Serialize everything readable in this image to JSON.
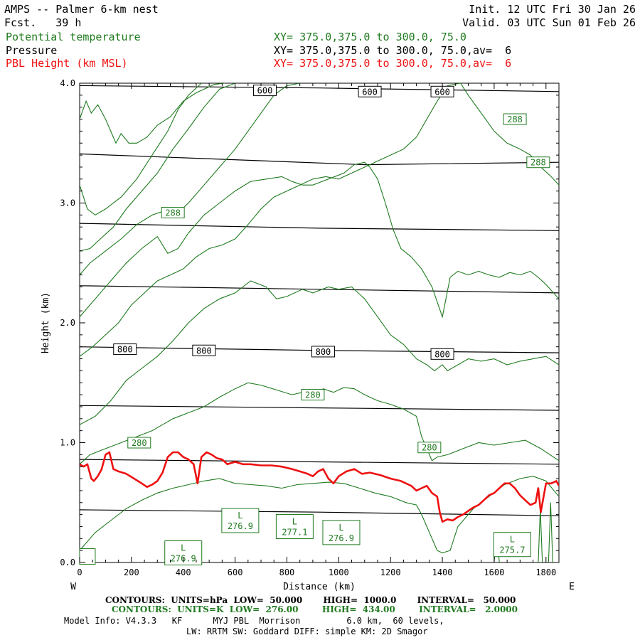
{
  "header": {
    "title": "AMPS -- Palmer 6-km nest",
    "fcst": "Fcst.   39 h",
    "init": "Init. 12 UTC Fri 30 Jan 26",
    "valid": "Valid. 03 UTC Sun 01 Feb 26",
    "rows": [
      {
        "name": "Potential temperature",
        "xy": "XY= 375.0,375.0 to 300.0, 75.0",
        "color": "#1f7a1f"
      },
      {
        "name": "Pressure",
        "xy": "XY= 375.0,375.0 to 300.0, 75.0,av=  6",
        "color": "#000000"
      },
      {
        "name": "PBL Height (km MSL)",
        "xy": "XY= 375.0,375.0 to 300.0, 75.0,av=  6",
        "color": "#ee1111"
      }
    ]
  },
  "footer": {
    "line1": "CONTOURS:  UNITS=hPa  LOW=  50.000       HIGH=  1000.0       INTERVAL=   50.000",
    "line2": "CONTOURS:  UNITS=K  LOW=  276.00        HIGH=  434.00        INTERVAL=   2.0000",
    "line3": "Model Info: V4.3.3   KF      MYJ PBL  Morrison         6.0 km,  60 levels,",
    "line4": "LW: RRTM SW: Goddard DIFF: simple KM: 2D Smagor"
  },
  "colors": {
    "theta": "#1f7a1f",
    "pressure": "#000000",
    "pbl": "#ee1111"
  },
  "chart_data": {
    "type": "line",
    "title": "AMPS -- Palmer 6-km nest cross section",
    "xlabel": "Distance (km)",
    "ylabel": "Height (km)",
    "xlim": [
      0,
      1850
    ],
    "ylim": [
      0,
      4.0
    ],
    "xticks": [
      "0",
      "200",
      "400",
      "600",
      "800",
      "1000",
      "1200",
      "1400",
      "1600",
      "1800"
    ],
    "yticks": [
      "0.0",
      "1.0",
      "2.0",
      "3.0",
      "4.0"
    ],
    "x_end_labels": {
      "left": "W",
      "right": "E"
    },
    "pressure_contours": [
      {
        "x": [
          0,
          925,
          1850
        ],
        "y": [
          3.98,
          3.96,
          3.93
        ]
      },
      {
        "x": [
          0,
          1100,
          1850
        ],
        "y": [
          3.41,
          3.32,
          3.34
        ]
      },
      {
        "x": [
          0,
          925,
          1850
        ],
        "y": [
          2.83,
          2.79,
          2.77
        ]
      },
      {
        "x": [
          0,
          925,
          1850
        ],
        "y": [
          2.31,
          2.28,
          2.25
        ]
      },
      {
        "x": [
          0,
          925,
          1850
        ],
        "y": [
          1.8,
          1.77,
          1.75
        ]
      },
      {
        "x": [
          0,
          925,
          1850
        ],
        "y": [
          1.31,
          1.29,
          1.27
        ]
      },
      {
        "x": [
          0,
          925,
          1850
        ],
        "y": [
          0.86,
          0.84,
          0.82
        ]
      },
      {
        "x": [
          0,
          925,
          1850
        ],
        "y": [
          0.44,
          0.42,
          0.39
        ]
      }
    ],
    "pressure_labels": [
      {
        "text": "600",
        "x": 715,
        "y": 3.94
      },
      {
        "text": "600",
        "x": 1120,
        "y": 3.93
      },
      {
        "text": "600",
        "x": 1400,
        "y": 3.93
      },
      {
        "text": "800",
        "x": 175,
        "y": 1.78
      },
      {
        "text": "800",
        "x": 480,
        "y": 1.77
      },
      {
        "text": "800",
        "x": 940,
        "y": 1.76
      },
      {
        "text": "800",
        "x": 1400,
        "y": 1.74
      }
    ],
    "theta_contours": [
      {
        "x": [
          0,
          25,
          45,
          70,
          100,
          120,
          140,
          160,
          190,
          220,
          260,
          300,
          350,
          400,
          450,
          520,
          560
        ],
        "y": [
          3.7,
          3.85,
          3.75,
          3.82,
          3.7,
          3.6,
          3.5,
          3.58,
          3.5,
          3.5,
          3.55,
          3.65,
          3.72,
          3.85,
          3.92,
          3.99,
          4.0
        ]
      },
      {
        "x": [
          0,
          30,
          60,
          100,
          160,
          220,
          280,
          340,
          380,
          420,
          470
        ],
        "y": [
          3.15,
          2.95,
          2.9,
          2.95,
          3.05,
          3.2,
          3.4,
          3.6,
          3.78,
          3.9,
          4.0
        ]
      },
      {
        "x": [
          0,
          40,
          80,
          130,
          180,
          240,
          300,
          360,
          420,
          480,
          540,
          600
        ],
        "y": [
          2.6,
          2.62,
          2.7,
          2.8,
          2.95,
          3.1,
          3.25,
          3.45,
          3.62,
          3.8,
          3.95,
          4.0
        ]
      },
      {
        "x": [
          0,
          40,
          100,
          160,
          220,
          280,
          320,
          360,
          420,
          480,
          540,
          600,
          650,
          700,
          750,
          800,
          850
        ],
        "y": [
          2.4,
          2.5,
          2.6,
          2.7,
          2.82,
          2.9,
          2.93,
          2.88,
          3.0,
          3.15,
          3.3,
          3.45,
          3.6,
          3.75,
          3.9,
          3.98,
          4.0
        ]
      },
      {
        "x": [
          0,
          60,
          120,
          180,
          240,
          300,
          340,
          380,
          420,
          480,
          540,
          600,
          660,
          720,
          780,
          820,
          860,
          900,
          960,
          1020,
          1060,
          1100,
          1120,
          1150,
          1180,
          1210,
          1240,
          1280,
          1320,
          1360,
          1400,
          1430,
          1460,
          1500,
          1540,
          1580,
          1620,
          1660,
          1700,
          1740,
          1770,
          1800,
          1850
        ],
        "y": [
          2.05,
          2.2,
          2.35,
          2.5,
          2.62,
          2.72,
          2.58,
          2.62,
          2.75,
          2.9,
          3.0,
          3.1,
          3.18,
          3.2,
          3.22,
          3.18,
          3.15,
          3.15,
          3.2,
          3.25,
          3.32,
          3.34,
          3.3,
          3.2,
          3.0,
          2.78,
          2.62,
          2.55,
          2.45,
          2.3,
          2.05,
          2.38,
          2.43,
          2.4,
          2.43,
          2.4,
          2.38,
          2.42,
          2.4,
          2.43,
          2.38,
          2.32,
          2.2
        ]
      },
      {
        "x": [
          0,
          50,
          100,
          150,
          200,
          250,
          300,
          350,
          400,
          450,
          500,
          550,
          600,
          650,
          700,
          750,
          800,
          850,
          900,
          950,
          1000,
          1050,
          1100,
          1150,
          1200,
          1250,
          1300,
          1340,
          1380,
          1420,
          1470,
          1500,
          1550,
          1600,
          1650,
          1700,
          1740,
          1780,
          1820,
          1850
        ],
        "y": [
          1.72,
          1.8,
          1.9,
          2.0,
          2.15,
          2.25,
          2.35,
          2.4,
          2.45,
          2.55,
          2.62,
          2.65,
          2.7,
          2.82,
          2.95,
          3.05,
          3.1,
          3.15,
          3.2,
          3.22,
          3.2,
          3.25,
          3.3,
          3.35,
          3.4,
          3.45,
          3.55,
          3.7,
          3.85,
          3.98,
          4.0,
          3.9,
          3.75,
          3.6,
          3.5,
          3.45,
          3.4,
          3.3,
          3.22,
          3.15
        ]
      },
      {
        "x": [
          0,
          60,
          120,
          180,
          240,
          300,
          360,
          420,
          480,
          540,
          600,
          660,
          720,
          760,
          800,
          860,
          900,
          960,
          1000,
          1050,
          1100,
          1150,
          1200,
          1250,
          1300,
          1340,
          1370,
          1400,
          1420,
          1460,
          1500,
          1550,
          1600,
          1650,
          1700,
          1750,
          1800,
          1850
        ],
        "y": [
          1.15,
          1.22,
          1.35,
          1.52,
          1.62,
          1.72,
          1.85,
          2.0,
          2.12,
          2.2,
          2.25,
          2.35,
          2.3,
          2.2,
          2.22,
          2.28,
          2.25,
          2.3,
          2.28,
          2.3,
          2.2,
          2.05,
          1.9,
          1.82,
          1.7,
          1.65,
          1.6,
          1.65,
          1.6,
          1.65,
          1.7,
          1.68,
          1.7,
          1.65,
          1.68,
          1.7,
          1.72,
          1.65
        ]
      },
      {
        "x": [
          0,
          40,
          100,
          160,
          220,
          280,
          320,
          360,
          420,
          480,
          540,
          600,
          650,
          700,
          760,
          820,
          860,
          900,
          940,
          980,
          1020,
          1060,
          1100,
          1150,
          1200,
          1250,
          1300,
          1320,
          1340,
          1360,
          1380,
          1420,
          1480,
          1540,
          1600,
          1660,
          1720,
          1780,
          1850
        ],
        "y": [
          0.82,
          0.9,
          0.95,
          1.0,
          1.05,
          1.1,
          1.15,
          1.2,
          1.25,
          1.3,
          1.38,
          1.45,
          1.5,
          1.48,
          1.44,
          1.4,
          1.42,
          1.4,
          1.45,
          1.42,
          1.46,
          1.45,
          1.4,
          1.35,
          1.32,
          1.28,
          1.22,
          1.05,
          0.95,
          0.85,
          0.88,
          0.9,
          0.95,
          1.0,
          0.98,
          1.0,
          1.02,
          0.95,
          0.85
        ]
      },
      {
        "x": [
          0,
          60,
          120,
          180,
          240,
          300,
          360,
          420,
          480,
          540,
          600,
          660,
          720,
          780,
          840,
          900,
          960,
          1020,
          1080,
          1140,
          1200,
          1260,
          1300,
          1320,
          1340,
          1360,
          1380,
          1400,
          1430,
          1460,
          1520,
          1580,
          1640,
          1700,
          1750,
          1800,
          1850
        ],
        "y": [
          0.1,
          0.25,
          0.35,
          0.45,
          0.52,
          0.58,
          0.62,
          0.65,
          0.68,
          0.7,
          0.66,
          0.65,
          0.64,
          0.62,
          0.65,
          0.66,
          0.67,
          0.66,
          0.62,
          0.58,
          0.55,
          0.5,
          0.48,
          0.4,
          0.3,
          0.2,
          0.1,
          0.08,
          0.1,
          0.3,
          0.45,
          0.55,
          0.65,
          0.7,
          0.72,
          0.68,
          0.55
        ]
      },
      {
        "x": [
          1600,
          1610,
          1620
        ],
        "y": [
          0.0,
          0.25,
          0.0
        ]
      },
      {
        "x": [
          1770,
          1778,
          1786
        ],
        "y": [
          0.0,
          0.45,
          0.0
        ]
      },
      {
        "x": [
          1810,
          1818,
          1826
        ],
        "y": [
          0.0,
          0.5,
          0.0
        ]
      }
    ],
    "theta_labels": [
      {
        "text": "288",
        "x": 360,
        "y": 2.92
      },
      {
        "text": "288",
        "x": 1680,
        "y": 3.7
      },
      {
        "text": "288",
        "x": 1770,
        "y": 3.34
      },
      {
        "text": "280",
        "x": 230,
        "y": 1.0
      },
      {
        "text": "280",
        "x": 900,
        "y": 1.4
      },
      {
        "text": "280",
        "x": 1350,
        "y": 0.96
      }
    ],
    "lows": [
      {
        "label": "L",
        "value": "276.9",
        "x": 620,
        "y": 0.35
      },
      {
        "label": "L",
        "value": "277.1",
        "x": 830,
        "y": 0.3
      },
      {
        "label": "L",
        "value": "276.9",
        "x": 1010,
        "y": 0.25
      },
      {
        "label": "L",
        "value": "276.9",
        "x": 400,
        "y": 0.08
      },
      {
        "label": "L",
        "value": "275.7",
        "x": 1670,
        "y": 0.15
      },
      {
        "label": "",
        "value": "",
        "x": 30,
        "y": 0.05
      }
    ],
    "series": [
      {
        "name": "PBL Height (km MSL)",
        "x": [
          0,
          15,
          30,
          45,
          55,
          70,
          85,
          100,
          115,
          130,
          150,
          180,
          210,
          240,
          260,
          280,
          300,
          320,
          340,
          360,
          380,
          400,
          420,
          440,
          455,
          470,
          490,
          510,
          530,
          550,
          570,
          600,
          630,
          660,
          700,
          740,
          780,
          820,
          850,
          880,
          900,
          920,
          940,
          960,
          980,
          1000,
          1030,
          1060,
          1090,
          1120,
          1160,
          1200,
          1240,
          1280,
          1300,
          1320,
          1340,
          1360,
          1380,
          1390,
          1400,
          1410,
          1420,
          1440,
          1460,
          1480,
          1500,
          1520,
          1540,
          1560,
          1580,
          1600,
          1620,
          1640,
          1660,
          1680,
          1700,
          1720,
          1740,
          1760,
          1770,
          1780,
          1800,
          1820,
          1840,
          1850
        ],
        "y": [
          0.82,
          0.8,
          0.82,
          0.7,
          0.68,
          0.72,
          0.78,
          0.9,
          0.92,
          0.78,
          0.76,
          0.74,
          0.7,
          0.66,
          0.63,
          0.65,
          0.68,
          0.75,
          0.88,
          0.92,
          0.92,
          0.88,
          0.86,
          0.82,
          0.66,
          0.88,
          0.92,
          0.9,
          0.87,
          0.86,
          0.82,
          0.84,
          0.82,
          0.82,
          0.81,
          0.81,
          0.8,
          0.78,
          0.76,
          0.74,
          0.72,
          0.76,
          0.78,
          0.7,
          0.66,
          0.72,
          0.76,
          0.78,
          0.74,
          0.75,
          0.73,
          0.7,
          0.68,
          0.64,
          0.6,
          0.62,
          0.64,
          0.58,
          0.55,
          0.42,
          0.34,
          0.35,
          0.36,
          0.35,
          0.38,
          0.4,
          0.43,
          0.46,
          0.48,
          0.52,
          0.56,
          0.58,
          0.62,
          0.66,
          0.66,
          0.62,
          0.56,
          0.52,
          0.48,
          0.5,
          0.62,
          0.42,
          0.66,
          0.66,
          0.68,
          0.64
        ]
      }
    ]
  }
}
